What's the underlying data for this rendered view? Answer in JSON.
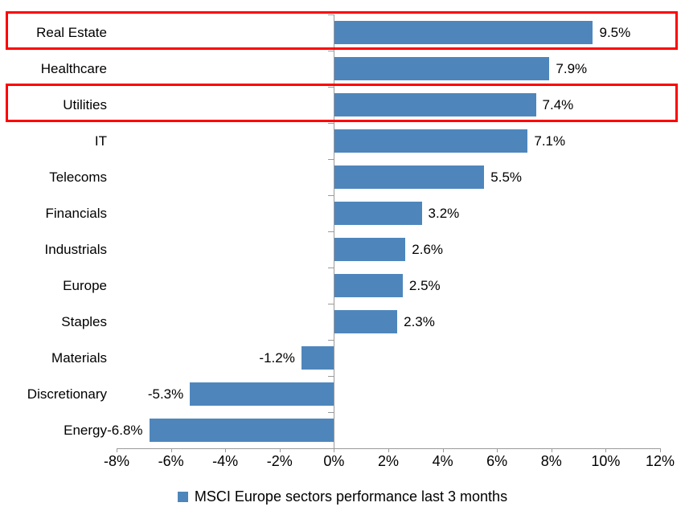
{
  "chart_data": {
    "type": "bar",
    "orientation": "horizontal",
    "title": "",
    "xlabel": "",
    "ylabel": "",
    "categories": [
      "Real Estate",
      "Healthcare",
      "Utilities",
      "IT",
      "Telecoms",
      "Financials",
      "Industrials",
      "Europe",
      "Staples",
      "Materials",
      "Discretionary",
      "Energy"
    ],
    "values": [
      9.5,
      7.9,
      7.4,
      7.1,
      5.5,
      3.2,
      2.6,
      2.5,
      2.3,
      -1.2,
      -5.3,
      -6.8
    ],
    "value_labels": [
      "9.5%",
      "7.9%",
      "7.4%",
      "7.1%",
      "5.5%",
      "3.2%",
      "2.6%",
      "2.5%",
      "2.3%",
      "-1.2%",
      "-5.3%",
      "-6.8%"
    ],
    "xlim": [
      -8,
      12
    ],
    "x_ticks": [
      -8,
      -6,
      -4,
      -2,
      0,
      2,
      4,
      6,
      8,
      10,
      12
    ],
    "x_tick_labels": [
      "-8%",
      "-6%",
      "-4%",
      "-2%",
      "0%",
      "2%",
      "4%",
      "6%",
      "8%",
      "10%",
      "12%"
    ],
    "grid": false,
    "legend_position": "bottom-center",
    "legend_label": "MSCI Europe sectors performance last 3 months",
    "bar_color": "#4E86BC",
    "axis_color": "#9a9a9a",
    "highlight_box_color": "#FF0000",
    "highlighted_categories": [
      "Real Estate",
      "Utilities"
    ],
    "highlighted_indices": [
      0,
      2
    ]
  }
}
